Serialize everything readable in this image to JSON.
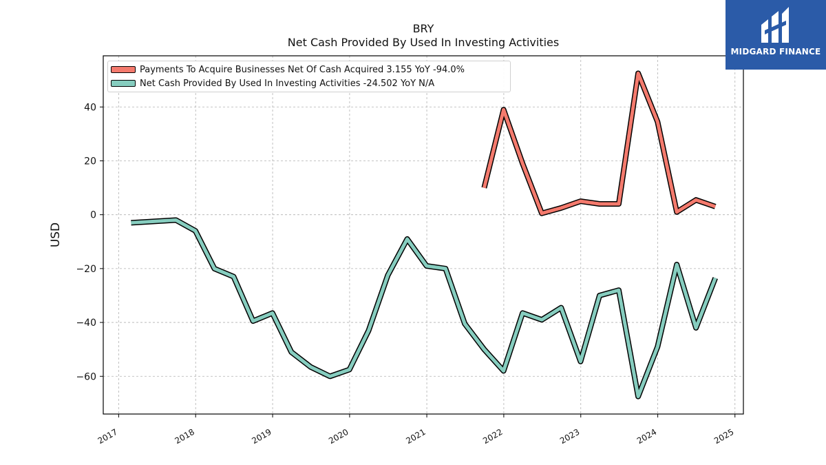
{
  "header": {
    "ticker": "BRY",
    "title": "Net Cash Provided By Used In Investing Activities"
  },
  "logo": {
    "text": "MIDGARD FINANCE",
    "background": "#2b5ba8"
  },
  "chart_data": {
    "type": "line",
    "title": "BRY",
    "subtitle": "Net Cash Provided By Used In Investing Activities",
    "ylabel": "USD",
    "xlabel": "",
    "xlim": [
      "2016-10-20",
      "2025-02-10"
    ],
    "ylim": [
      -74,
      59
    ],
    "x_ticks": [
      "2017",
      "2018",
      "2019",
      "2020",
      "2021",
      "2022",
      "2023",
      "2024",
      "2025"
    ],
    "y_ticks": [
      -60,
      -40,
      -20,
      0,
      20,
      40
    ],
    "grid": true,
    "legend_position": "top-left",
    "series": [
      {
        "name": "Payments To Acquire Businesses Net Of Cash Acquired",
        "legend_label": "Payments To Acquire Businesses Net Of Cash Acquired  3.155 YoY -94.0%",
        "color": "#f47a6d",
        "points": [
          [
            "2021-09-30",
            10
          ],
          [
            "2021-12-31",
            39
          ],
          [
            "2022-03-31",
            19
          ],
          [
            "2022-06-30",
            0.5
          ],
          [
            "2022-09-30",
            2.5
          ],
          [
            "2022-12-31",
            5
          ],
          [
            "2023-03-31",
            4
          ],
          [
            "2023-06-30",
            4
          ],
          [
            "2023-09-30",
            52.5
          ],
          [
            "2023-12-31",
            34.5
          ],
          [
            "2024-03-31",
            1
          ],
          [
            "2024-06-30",
            5.5
          ],
          [
            "2024-09-30",
            3
          ]
        ]
      },
      {
        "name": "Net Cash Provided By Used In Investing Activities",
        "legend_label": "Net Cash Provided By Used In Investing Activities  -24.502 YoY N/A",
        "color": "#86cdbf",
        "points": [
          [
            "2017-03-01",
            -3
          ],
          [
            "2017-09-30",
            -2
          ],
          [
            "2017-12-31",
            -6
          ],
          [
            "2018-03-31",
            -20
          ],
          [
            "2018-06-30",
            -23
          ],
          [
            "2018-09-30",
            -39.5
          ],
          [
            "2018-12-31",
            -36.5
          ],
          [
            "2019-03-31",
            -51
          ],
          [
            "2019-06-30",
            -56.5
          ],
          [
            "2019-09-30",
            -60
          ],
          [
            "2019-12-31",
            -57.5
          ],
          [
            "2020-03-31",
            -43
          ],
          [
            "2020-06-30",
            -22.5
          ],
          [
            "2020-09-30",
            -9
          ],
          [
            "2020-12-31",
            -19
          ],
          [
            "2021-03-31",
            -20
          ],
          [
            "2021-06-30",
            -40.5
          ],
          [
            "2021-09-30",
            -50
          ],
          [
            "2021-12-31",
            -58
          ],
          [
            "2022-03-31",
            -36.5
          ],
          [
            "2022-06-30",
            -39
          ],
          [
            "2022-09-30",
            -34.5
          ],
          [
            "2022-12-31",
            -54.5
          ],
          [
            "2023-03-31",
            -30
          ],
          [
            "2023-06-30",
            -28
          ],
          [
            "2023-09-30",
            -67.5
          ],
          [
            "2023-12-31",
            -49
          ],
          [
            "2024-03-31",
            -18.5
          ],
          [
            "2024-06-30",
            -42
          ],
          [
            "2024-09-30",
            -23.5
          ]
        ]
      }
    ]
  }
}
